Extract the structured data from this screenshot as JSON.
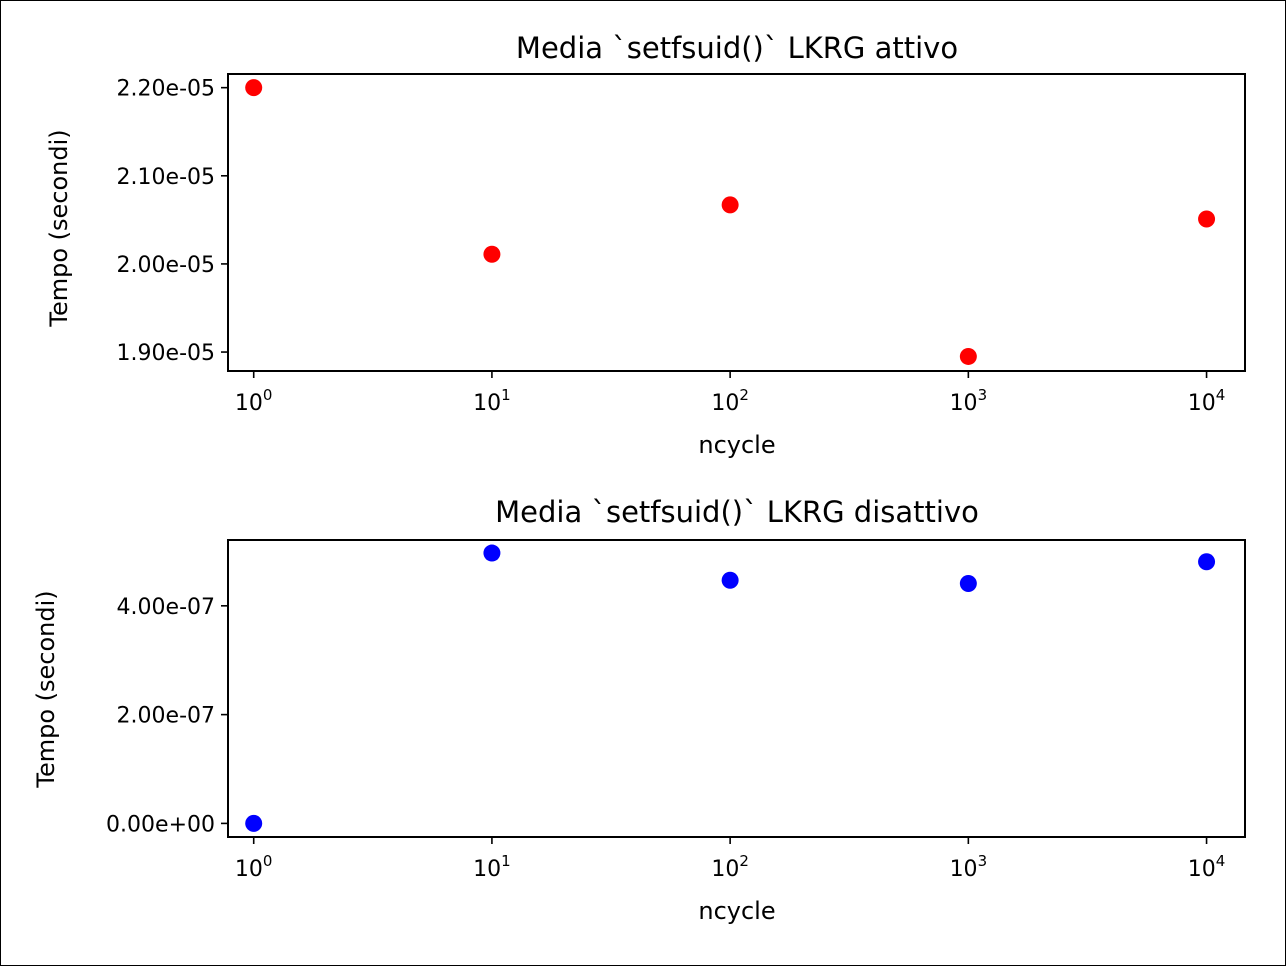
{
  "chart_data": [
    {
      "type": "scatter",
      "title": "Media `setfsuid()` LKRG attivo",
      "xlabel": "ncycle",
      "ylabel": "Tempo (secondi)",
      "xscale": "log",
      "xlim": [
        0.78,
        14500
      ],
      "ylim": [
        1.8785e-05,
        2.2155e-05
      ],
      "x_ticks": [
        {
          "value": 1,
          "base": "10",
          "exp": "0"
        },
        {
          "value": 10,
          "base": "10",
          "exp": "1"
        },
        {
          "value": 100,
          "base": "10",
          "exp": "2"
        },
        {
          "value": 1000,
          "base": "10",
          "exp": "3"
        },
        {
          "value": 10000,
          "base": "10",
          "exp": "4"
        }
      ],
      "y_ticks": [
        {
          "value": 1.9e-05,
          "label": "1.90e-05"
        },
        {
          "value": 2e-05,
          "label": "2.00e-05"
        },
        {
          "value": 2.1e-05,
          "label": "2.10e-05"
        },
        {
          "value": 2.2e-05,
          "label": "2.20e-05"
        }
      ],
      "grid": false,
      "color": "#ff0000",
      "series": [
        {
          "x": [
            1,
            10,
            100,
            1000,
            10000
          ],
          "y": [
            2.2e-05,
            2.011e-05,
            2.067e-05,
            1.895e-05,
            2.051e-05
          ]
        }
      ]
    },
    {
      "type": "scatter",
      "title": "Media `setfsuid()` LKRG disattivo",
      "xlabel": "ncycle",
      "ylabel": "Tempo (secondi)",
      "xscale": "log",
      "xlim": [
        0.78,
        14500
      ],
      "ylim": [
        -2.5e-08,
        5.21e-07
      ],
      "x_ticks": [
        {
          "value": 1,
          "base": "10",
          "exp": "0"
        },
        {
          "value": 10,
          "base": "10",
          "exp": "1"
        },
        {
          "value": 100,
          "base": "10",
          "exp": "2"
        },
        {
          "value": 1000,
          "base": "10",
          "exp": "3"
        },
        {
          "value": 10000,
          "base": "10",
          "exp": "4"
        }
      ],
      "y_ticks": [
        {
          "value": 0,
          "label": "0.00e+00"
        },
        {
          "value": 2e-07,
          "label": "2.00e-07"
        },
        {
          "value": 4e-07,
          "label": "4.00e-07"
        }
      ],
      "grid": false,
      "color": "#0000ff",
      "series": [
        {
          "x": [
            1,
            10,
            100,
            1000,
            10000
          ],
          "y": [
            0,
            4.97e-07,
            4.47e-07,
            4.41e-07,
            4.81e-07
          ]
        }
      ]
    }
  ]
}
